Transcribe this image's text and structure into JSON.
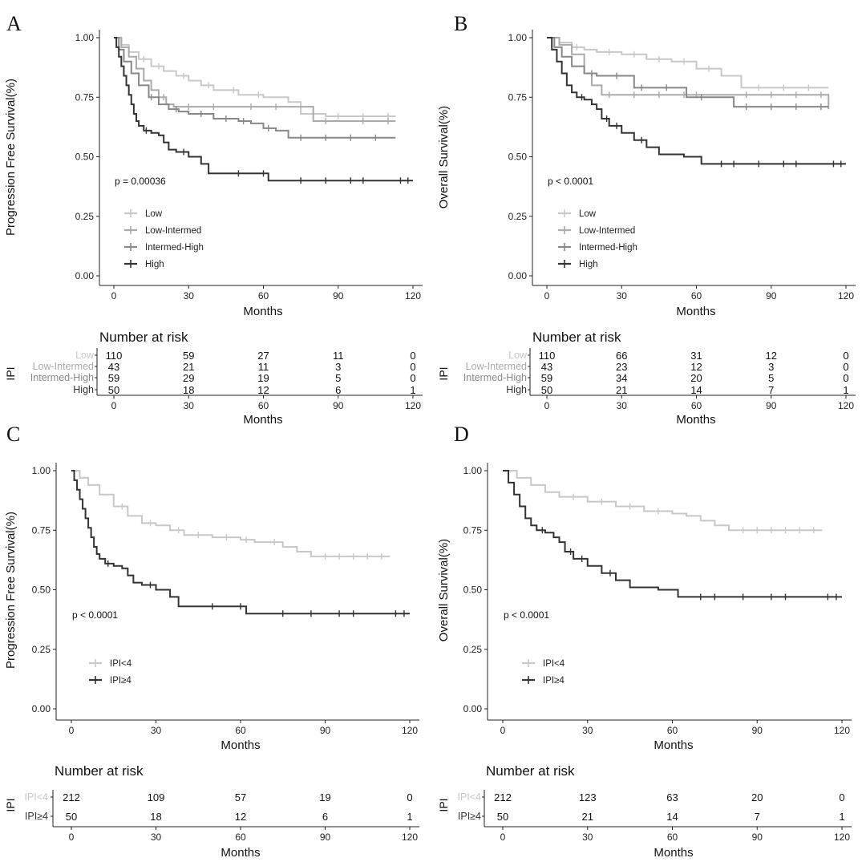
{
  "colors": {
    "Low": "#c8c8c8",
    "Low-Intermed": "#aaaaaa",
    "Intermed-High": "#888888",
    "High": "#333333",
    "IPI<4": "#c8c8c8",
    "IPI≥4": "#333333"
  },
  "chart_data": [
    {
      "type": "line",
      "panel": "A",
      "xlabel": "Months",
      "ylabel": "Progression Free Survival(%)",
      "xlim": [
        0,
        120
      ],
      "ylim": [
        0,
        1
      ],
      "xticks": [
        "0",
        "30",
        "60",
        "90",
        "120"
      ],
      "yticks": [
        "0.00",
        "0.25",
        "0.50",
        "0.75",
        "1.00"
      ],
      "pvalue": "p = 0.00036",
      "series": [
        {
          "name": "Low",
          "x": [
            0,
            3,
            6,
            10,
            15,
            20,
            25,
            30,
            35,
            40,
            50,
            60,
            70,
            75,
            85,
            95,
            113
          ],
          "y": [
            1.0,
            0.97,
            0.94,
            0.91,
            0.88,
            0.86,
            0.84,
            0.82,
            0.8,
            0.78,
            0.76,
            0.75,
            0.73,
            0.68,
            0.67,
            0.67,
            0.67
          ],
          "censor": [
            12,
            18,
            28,
            38,
            48,
            58,
            80,
            90,
            100,
            110
          ]
        },
        {
          "name": "Low-Intermed",
          "x": [
            0,
            3,
            6,
            9,
            12,
            15,
            18,
            21,
            24,
            30,
            45,
            60,
            72,
            80,
            113
          ],
          "y": [
            1.0,
            0.96,
            0.92,
            0.87,
            0.82,
            0.78,
            0.75,
            0.72,
            0.71,
            0.71,
            0.71,
            0.71,
            0.71,
            0.65,
            0.65
          ],
          "censor": [
            20,
            30,
            40,
            55,
            65,
            85,
            100,
            110
          ]
        },
        {
          "name": "Intermed-High",
          "x": [
            0,
            2,
            4,
            7,
            10,
            14,
            18,
            22,
            26,
            30,
            40,
            50,
            55,
            60,
            65,
            70,
            80,
            113
          ],
          "y": [
            1.0,
            0.95,
            0.9,
            0.85,
            0.8,
            0.75,
            0.72,
            0.7,
            0.69,
            0.68,
            0.66,
            0.65,
            0.64,
            0.62,
            0.61,
            0.58,
            0.58,
            0.58
          ],
          "censor": [
            15,
            25,
            35,
            45,
            52,
            62,
            75,
            85,
            95,
            105
          ]
        },
        {
          "name": "High",
          "x": [
            0,
            1,
            2,
            3,
            4,
            5,
            6,
            7,
            8,
            9,
            10,
            12,
            15,
            18,
            20,
            22,
            25,
            30,
            35,
            38,
            45,
            55,
            62,
            120
          ],
          "y": [
            1.0,
            0.96,
            0.92,
            0.88,
            0.84,
            0.8,
            0.76,
            0.72,
            0.68,
            0.65,
            0.63,
            0.61,
            0.6,
            0.59,
            0.56,
            0.53,
            0.52,
            0.5,
            0.47,
            0.43,
            0.43,
            0.43,
            0.4,
            0.4
          ],
          "censor": [
            13,
            28,
            50,
            60,
            75,
            85,
            95,
            100,
            115,
            118
          ]
        }
      ],
      "legend": [
        "Low",
        "Low-Intermed",
        "Intermed-High",
        "High"
      ],
      "risk_table": {
        "title": "Number at risk",
        "ylabel": "IPI",
        "rows": [
          {
            "label": "Low",
            "values": [
              "110",
              "59",
              "27",
              "11",
              "0"
            ]
          },
          {
            "label": "Low-Intermed",
            "values": [
              "43",
              "21",
              "11",
              "3",
              "0"
            ]
          },
          {
            "label": "Intermed-High",
            "values": [
              "59",
              "29",
              "19",
              "5",
              "0"
            ]
          },
          {
            "label": "High",
            "values": [
              "50",
              "18",
              "12",
              "6",
              "1"
            ]
          }
        ],
        "xticks": [
          "0",
          "30",
          "60",
          "90",
          "120"
        ],
        "xlabel": "Months"
      }
    },
    {
      "type": "line",
      "panel": "B",
      "xlabel": "Months",
      "ylabel": "Overall Survival(%)",
      "xlim": [
        0,
        120
      ],
      "ylim": [
        0,
        1
      ],
      "xticks": [
        "0",
        "30",
        "60",
        "90",
        "120"
      ],
      "yticks": [
        "0.00",
        "0.25",
        "0.50",
        "0.75",
        "1.00"
      ],
      "pvalue": "p < 0.0001",
      "series": [
        {
          "name": "Low",
          "x": [
            0,
            5,
            10,
            15,
            20,
            30,
            40,
            50,
            60,
            70,
            78,
            113
          ],
          "y": [
            1.0,
            0.98,
            0.96,
            0.95,
            0.94,
            0.93,
            0.91,
            0.9,
            0.87,
            0.84,
            0.79,
            0.79
          ],
          "censor": [
            12,
            25,
            35,
            45,
            55,
            65,
            85,
            95,
            105
          ]
        },
        {
          "name": "Low-Intermed",
          "x": [
            0,
            5,
            10,
            15,
            18,
            22,
            30,
            50,
            70,
            113
          ],
          "y": [
            1.0,
            0.97,
            0.93,
            0.85,
            0.8,
            0.76,
            0.76,
            0.76,
            0.76,
            0.7
          ],
          "censor": [
            25,
            35,
            45,
            55,
            60,
            80,
            90,
            100,
            110
          ]
        },
        {
          "name": "Intermed-High",
          "x": [
            0,
            3,
            6,
            10,
            15,
            20,
            25,
            35,
            45,
            56,
            65,
            75,
            113
          ],
          "y": [
            1.0,
            0.96,
            0.92,
            0.88,
            0.85,
            0.84,
            0.84,
            0.79,
            0.79,
            0.75,
            0.75,
            0.71,
            0.71
          ],
          "censor": [
            18,
            28,
            38,
            48,
            62,
            80,
            90,
            100,
            110
          ]
        },
        {
          "name": "High",
          "x": [
            0,
            2,
            4,
            6,
            8,
            10,
            12,
            15,
            18,
            20,
            22,
            25,
            30,
            35,
            40,
            45,
            55,
            62,
            120
          ],
          "y": [
            1.0,
            0.95,
            0.9,
            0.85,
            0.8,
            0.77,
            0.75,
            0.74,
            0.72,
            0.7,
            0.66,
            0.63,
            0.6,
            0.57,
            0.54,
            0.51,
            0.5,
            0.47,
            0.47
          ],
          "censor": [
            14,
            24,
            28,
            38,
            70,
            75,
            85,
            95,
            100,
            115,
            118
          ]
        }
      ],
      "legend": [
        "Low",
        "Low-Intermed",
        "Intermed-High",
        "High"
      ],
      "risk_table": {
        "title": "Number at risk",
        "ylabel": "IPI",
        "rows": [
          {
            "label": "Low",
            "values": [
              "110",
              "66",
              "31",
              "12",
              "0"
            ]
          },
          {
            "label": "Low-Intermed",
            "values": [
              "43",
              "23",
              "12",
              "3",
              "0"
            ]
          },
          {
            "label": "Intermed-High",
            "values": [
              "59",
              "34",
              "20",
              "5",
              "0"
            ]
          },
          {
            "label": "High",
            "values": [
              "50",
              "21",
              "14",
              "7",
              "1"
            ]
          }
        ],
        "xticks": [
          "0",
          "30",
          "60",
          "90",
          "120"
        ],
        "xlabel": "Months"
      }
    },
    {
      "type": "line",
      "panel": "C",
      "xlabel": "Months",
      "ylabel": "Progression Free Survival(%)",
      "xlim": [
        0,
        120
      ],
      "ylim": [
        0,
        1
      ],
      "xticks": [
        "0",
        "30",
        "60",
        "90",
        "120"
      ],
      "yticks": [
        "0.00",
        "0.25",
        "0.50",
        "0.75",
        "1.00"
      ],
      "pvalue": "p < 0.0001",
      "series": [
        {
          "name": "IPI<4",
          "x": [
            0,
            3,
            6,
            10,
            15,
            20,
            25,
            30,
            35,
            40,
            50,
            60,
            65,
            70,
            75,
            80,
            85,
            113
          ],
          "y": [
            1.0,
            0.97,
            0.94,
            0.9,
            0.85,
            0.81,
            0.78,
            0.77,
            0.75,
            0.73,
            0.72,
            0.71,
            0.7,
            0.7,
            0.68,
            0.66,
            0.64,
            0.64
          ],
          "censor": [
            18,
            28,
            38,
            45,
            55,
            62,
            72,
            90,
            95,
            100,
            105,
            110
          ]
        },
        {
          "name": "IPI≥4",
          "x": [
            0,
            1,
            2,
            3,
            4,
            5,
            6,
            7,
            8,
            9,
            10,
            12,
            15,
            18,
            20,
            22,
            25,
            30,
            35,
            38,
            45,
            55,
            62,
            120
          ],
          "y": [
            1.0,
            0.96,
            0.92,
            0.88,
            0.84,
            0.8,
            0.76,
            0.72,
            0.68,
            0.65,
            0.63,
            0.61,
            0.6,
            0.59,
            0.56,
            0.53,
            0.52,
            0.5,
            0.47,
            0.43,
            0.43,
            0.43,
            0.4,
            0.4
          ],
          "censor": [
            13,
            28,
            50,
            60,
            75,
            85,
            95,
            100,
            115,
            118
          ]
        }
      ],
      "legend": [
        "IPI<4",
        "IPI≥4"
      ],
      "risk_table": {
        "title": "Number at risk",
        "ylabel": "IPI",
        "rows": [
          {
            "label": "IPI<4",
            "values": [
              "212",
              "109",
              "57",
              "19",
              "0"
            ]
          },
          {
            "label": "IPI≥4",
            "values": [
              "50",
              "18",
              "12",
              "6",
              "1"
            ]
          }
        ],
        "xticks": [
          "0",
          "30",
          "60",
          "90",
          "120"
        ],
        "xlabel": "Months"
      }
    },
    {
      "type": "line",
      "panel": "D",
      "xlabel": "Months",
      "ylabel": "Overall Survival(%)",
      "xlim": [
        0,
        120
      ],
      "ylim": [
        0,
        1
      ],
      "xticks": [
        "0",
        "30",
        "60",
        "90",
        "120"
      ],
      "yticks": [
        "0.00",
        "0.25",
        "0.50",
        "0.75",
        "1.00"
      ],
      "pvalue": "p < 0.0001",
      "series": [
        {
          "name": "IPI<4",
          "x": [
            0,
            5,
            10,
            15,
            20,
            30,
            40,
            50,
            60,
            65,
            70,
            75,
            80,
            113
          ],
          "y": [
            1.0,
            0.97,
            0.94,
            0.91,
            0.89,
            0.87,
            0.85,
            0.83,
            0.82,
            0.81,
            0.79,
            0.77,
            0.75,
            0.75
          ],
          "censor": [
            25,
            35,
            45,
            55,
            85,
            90,
            95,
            100,
            105,
            110
          ]
        },
        {
          "name": "IPI≥4",
          "x": [
            0,
            2,
            4,
            6,
            8,
            10,
            12,
            15,
            18,
            20,
            22,
            25,
            30,
            35,
            40,
            45,
            55,
            62,
            120
          ],
          "y": [
            1.0,
            0.95,
            0.9,
            0.85,
            0.8,
            0.77,
            0.75,
            0.74,
            0.72,
            0.7,
            0.66,
            0.63,
            0.6,
            0.57,
            0.54,
            0.51,
            0.5,
            0.47,
            0.47
          ],
          "censor": [
            14,
            24,
            28,
            38,
            70,
            75,
            85,
            95,
            100,
            115,
            118
          ]
        }
      ],
      "legend": [
        "IPI<4",
        "IPI≥4"
      ],
      "risk_table": {
        "title": "Number at risk",
        "ylabel": "IPI",
        "rows": [
          {
            "label": "IPI<4",
            "values": [
              "212",
              "123",
              "63",
              "20",
              "0"
            ]
          },
          {
            "label": "IPI≥4",
            "values": [
              "50",
              "21",
              "14",
              "7",
              "1"
            ]
          }
        ],
        "xticks": [
          "0",
          "30",
          "60",
          "90",
          "120"
        ],
        "xlabel": "Months"
      }
    }
  ]
}
